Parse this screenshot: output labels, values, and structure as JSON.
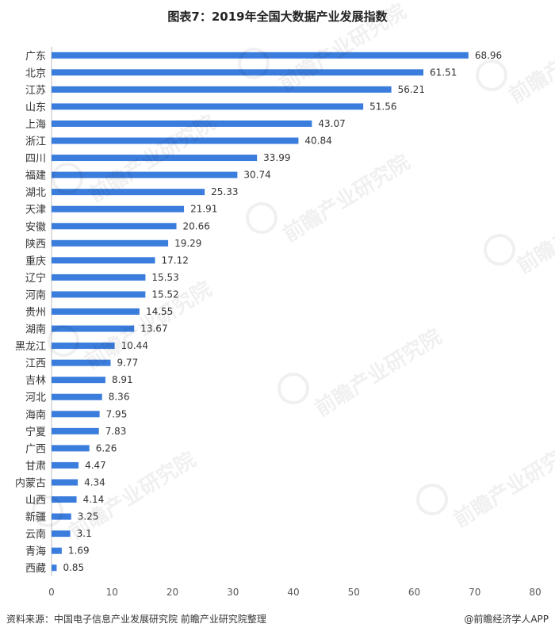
{
  "title": "图表7：2019年全国大数据产业发展指数",
  "footer": {
    "source": "资料来源：中国电子信息产业发展研究院 前瞻产业研究院整理",
    "brand": "@前瞻经济学人APP"
  },
  "watermark": {
    "text": "前瞻产业研究院"
  },
  "colors": {
    "bar": "#3B7DDD",
    "axis": "#BFBFBF",
    "text": "#333333"
  },
  "chart_data": {
    "type": "bar",
    "orientation": "horizontal",
    "categories": [
      "广东",
      "北京",
      "江苏",
      "山东",
      "上海",
      "浙江",
      "四川",
      "福建",
      "湖北",
      "天津",
      "安徽",
      "陕西",
      "重庆",
      "辽宁",
      "河南",
      "贵州",
      "湖南",
      "黑龙江",
      "江西",
      "吉林",
      "河北",
      "海南",
      "宁夏",
      "广西",
      "甘肃",
      "内蒙古",
      "山西",
      "新疆",
      "云南",
      "青海",
      "西藏"
    ],
    "values": [
      68.96,
      61.51,
      56.21,
      51.56,
      43.07,
      40.84,
      33.99,
      30.74,
      25.33,
      21.91,
      20.66,
      19.29,
      17.12,
      15.53,
      15.52,
      14.55,
      13.67,
      10.44,
      9.77,
      8.91,
      8.36,
      7.95,
      7.83,
      6.26,
      4.47,
      4.34,
      4.14,
      3.25,
      3.1,
      1.69,
      0.85
    ],
    "value_labels": [
      "68.96",
      "61.51",
      "56.21",
      "51.56",
      "43.07",
      "40.84",
      "33.99",
      "30.74",
      "25.33",
      "21.91",
      "20.66",
      "19.29",
      "17.12",
      "15.53",
      "15.52",
      "14.55",
      "13.67",
      "10.44",
      "9.77",
      "8.91",
      "8.36",
      "7.95",
      "7.83",
      "6.26",
      "4.47",
      "4.34",
      "4.14",
      "3.25",
      "3.1",
      "1.69",
      "0.85"
    ],
    "xlim": [
      0,
      80
    ],
    "xticks": [
      "0",
      "10",
      "20",
      "30",
      "40",
      "50",
      "60",
      "70",
      "80"
    ],
    "grid": false,
    "legend": "none"
  }
}
